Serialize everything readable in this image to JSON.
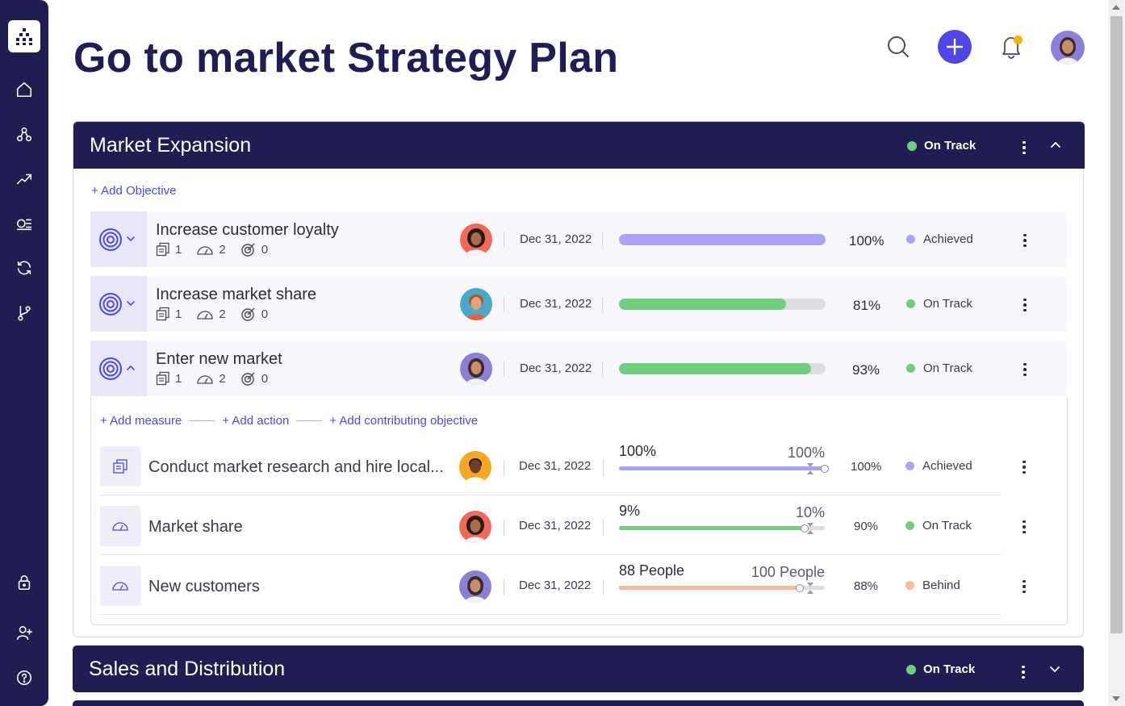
{
  "page": {
    "title": "Go to market Strategy Plan"
  },
  "sidebar": {
    "logo": "app-logo-icon",
    "items": [
      {
        "name": "home-icon"
      },
      {
        "name": "hierarchy-icon"
      },
      {
        "name": "trending-up-icon"
      },
      {
        "name": "list-icon"
      },
      {
        "name": "sync-icon"
      },
      {
        "name": "branch-icon"
      },
      {
        "name": "lock-icon"
      },
      {
        "name": "add-user-icon"
      },
      {
        "name": "help-icon"
      }
    ]
  },
  "header": {
    "search_icon": "search-icon",
    "add_icon": "plus-icon",
    "bell_icon": "bell-icon",
    "colors": {
      "accent": "#4f46e5",
      "notification": "#f5b400"
    }
  },
  "colors": {
    "navy": "#1f1d52",
    "on_track": "#6fcf7f",
    "achieved": "#a9a4f5",
    "behind": "#f6b999"
  },
  "sections": [
    {
      "title": "Market Expansion",
      "status": "On Track",
      "add_objective": "+ Add Objective",
      "objectives": [
        {
          "title": "Increase customer loyalty",
          "docs": "1",
          "measures": "2",
          "contributing": "0",
          "date": "Dec 31, 2022",
          "progress": 100,
          "pct": "100%",
          "status": "Achieved"
        },
        {
          "title": "Increase market share",
          "docs": "1",
          "measures": "2",
          "contributing": "0",
          "date": "Dec 31, 2022",
          "progress": 81,
          "pct": "81%",
          "status": "On Track"
        },
        {
          "title": "Enter new market",
          "docs": "1",
          "measures": "2",
          "contributing": "0",
          "date": "Dec 31, 2022",
          "progress": 93,
          "pct": "93%",
          "status": "On Track"
        }
      ],
      "expanded": {
        "add_measure": "+ Add measure",
        "add_action": "+ Add action",
        "add_contributing": "+ Add contributing objective",
        "key_results": [
          {
            "title": "Conduct market research and hire local...",
            "date": "Dec 31, 2022",
            "current": "100%",
            "target": "100%",
            "progress": 100,
            "pct": "100%",
            "status": "Achieved"
          },
          {
            "title": "Market share",
            "date": "Dec 31, 2022",
            "current": "9%",
            "target": "10%",
            "progress": 90,
            "pct": "90%",
            "status": "On Track"
          },
          {
            "title": "New customers",
            "date": "Dec 31, 2022",
            "current": "88 People",
            "target": "100 People",
            "progress": 88,
            "pct": "88%",
            "status": "Behind"
          }
        ]
      }
    },
    {
      "title": "Sales and Distribution",
      "status": "On Track"
    }
  ]
}
